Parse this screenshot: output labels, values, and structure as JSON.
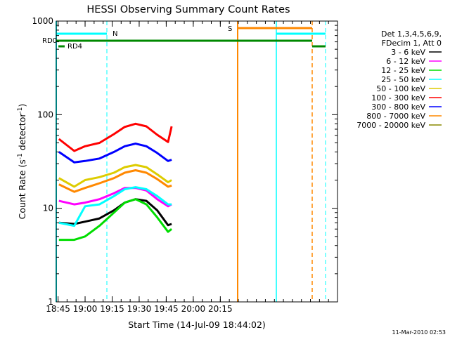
{
  "chart_data": {
    "type": "line",
    "title": "HESSI Observing Summary Count Rates",
    "xlabel": "Start Time (14-Jul-09 18:44:02)",
    "ylabel": "Count Rate (s",
    "ylabel_sup": "-1",
    "ylabel_mid": " detector",
    "ylabel_end": ")",
    "x_range_min": [
      1124,
      1280
    ],
    "y_range": [
      1,
      1000
    ],
    "y_scale": "log",
    "x_ticks": [
      {
        "m": 1125,
        "label": "18:45"
      },
      {
        "m": 1140,
        "label": "19:00"
      },
      {
        "m": 1155,
        "label": "19:15"
      },
      {
        "m": 1170,
        "label": "19:30"
      },
      {
        "m": 1185,
        "label": "19:45"
      },
      {
        "m": 1200,
        "label": "20:00"
      },
      {
        "m": 1215,
        "label": "20:15"
      }
    ],
    "y_ticks": [
      {
        "v": 1,
        "label": "1"
      },
      {
        "v": 10,
        "label": "10"
      },
      {
        "v": 100,
        "label": "100"
      },
      {
        "v": 1000,
        "label": "1000"
      }
    ],
    "legend_header": [
      "Det 1,3,4,5,6,9,",
      "FDecim 1, Att 0"
    ],
    "legend_position": "right",
    "series": [
      {
        "name": "3 - 6 keV",
        "color": "#000000",
        "points": [
          [
            1125.5,
            7
          ],
          [
            1134,
            6.8
          ],
          [
            1140,
            7.2
          ],
          [
            1148,
            7.8
          ],
          [
            1156,
            9.5
          ],
          [
            1162,
            11.5
          ],
          [
            1168,
            12.5
          ],
          [
            1174,
            12
          ],
          [
            1180,
            9.5
          ],
          [
            1186,
            6.6
          ],
          [
            1188,
            6.8
          ]
        ]
      },
      {
        "name": "6 - 12 keV",
        "color": "#ff00ff",
        "points": [
          [
            1125.5,
            12
          ],
          [
            1134,
            11
          ],
          [
            1140,
            11.5
          ],
          [
            1148,
            12.5
          ],
          [
            1156,
            14.5
          ],
          [
            1162,
            16.5
          ],
          [
            1168,
            16.5
          ],
          [
            1174,
            15.5
          ],
          [
            1180,
            12.5
          ],
          [
            1186,
            10.5
          ],
          [
            1188,
            11
          ]
        ]
      },
      {
        "name": "12 - 25 keV",
        "color": "#00dd00",
        "points": [
          [
            1125.5,
            4.6
          ],
          [
            1134,
            4.6
          ],
          [
            1140,
            5
          ],
          [
            1148,
            6.5
          ],
          [
            1156,
            9
          ],
          [
            1162,
            11.5
          ],
          [
            1168,
            12.5
          ],
          [
            1174,
            11
          ],
          [
            1180,
            8
          ],
          [
            1186,
            5.6
          ],
          [
            1188,
            6
          ]
        ]
      },
      {
        "name": "25 - 50 keV",
        "color": "#00ffff",
        "points": [
          [
            1125.5,
            7
          ],
          [
            1134,
            6.5
          ],
          [
            1140,
            10.5
          ],
          [
            1148,
            11
          ],
          [
            1156,
            13.5
          ],
          [
            1162,
            16
          ],
          [
            1168,
            16.8
          ],
          [
            1174,
            16
          ],
          [
            1180,
            13.5
          ],
          [
            1186,
            11
          ],
          [
            1188,
            11
          ]
        ]
      },
      {
        "name": "50 - 100 keV",
        "color": "#ddcc00",
        "points": [
          [
            1125.5,
            21
          ],
          [
            1134,
            17
          ],
          [
            1140,
            20
          ],
          [
            1148,
            21.5
          ],
          [
            1156,
            24
          ],
          [
            1162,
            27.5
          ],
          [
            1168,
            29
          ],
          [
            1174,
            27.5
          ],
          [
            1180,
            23
          ],
          [
            1186,
            19
          ],
          [
            1188,
            20
          ]
        ]
      },
      {
        "name": "100 - 300 keV",
        "color": "#ff0000",
        "points": [
          [
            1125.5,
            55
          ],
          [
            1134,
            41
          ],
          [
            1140,
            46
          ],
          [
            1148,
            50
          ],
          [
            1156,
            62
          ],
          [
            1162,
            74
          ],
          [
            1168,
            80
          ],
          [
            1174,
            75
          ],
          [
            1180,
            61
          ],
          [
            1186,
            51
          ],
          [
            1188,
            75
          ]
        ]
      },
      {
        "name": "300 - 800 keV",
        "color": "#0000ff",
        "points": [
          [
            1125.5,
            40
          ],
          [
            1134,
            31
          ],
          [
            1140,
            32
          ],
          [
            1148,
            34
          ],
          [
            1156,
            40
          ],
          [
            1162,
            46
          ],
          [
            1168,
            49
          ],
          [
            1174,
            46
          ],
          [
            1180,
            39
          ],
          [
            1186,
            32
          ],
          [
            1188,
            33
          ]
        ]
      },
      {
        "name": "800 - 7000 keV",
        "color": "#ff8800",
        "points": [
          [
            1125.5,
            18
          ],
          [
            1134,
            15
          ],
          [
            1140,
            16.5
          ],
          [
            1148,
            18.5
          ],
          [
            1156,
            21
          ],
          [
            1162,
            24
          ],
          [
            1168,
            25.5
          ],
          [
            1174,
            24
          ],
          [
            1180,
            20.5
          ],
          [
            1186,
            17
          ],
          [
            1188,
            17.5
          ]
        ]
      },
      {
        "name": "7000 - 20000 keV",
        "color": "#888800",
        "points": []
      }
    ],
    "annotations": [
      {
        "text": "N",
        "color": "#00ffff"
      },
      {
        "text": "S",
        "color": "#ff8800"
      },
      {
        "text": "RD0",
        "color": "#008800"
      },
      {
        "text": "RD4",
        "color": "#008800"
      }
    ],
    "footer_timestamp": "11-Mar-2010 02:53"
  }
}
